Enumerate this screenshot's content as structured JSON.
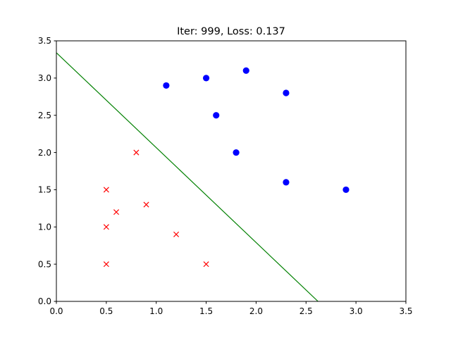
{
  "chart_data": {
    "type": "scatter",
    "title": "Iter: 999, Loss: 0.137",
    "xlabel": "",
    "ylabel": "",
    "xlim": [
      0.0,
      3.5
    ],
    "ylim": [
      0.0,
      3.5
    ],
    "xticks": [
      "0.0",
      "0.5",
      "1.0",
      "1.5",
      "2.0",
      "2.5",
      "3.0",
      "3.5"
    ],
    "yticks": [
      "0.0",
      "0.5",
      "1.0",
      "1.5",
      "2.0",
      "2.5",
      "3.0",
      "3.5"
    ],
    "grid": false,
    "legend": "none",
    "series": [
      {
        "marker": "circle",
        "color": "#0000ff",
        "points": [
          [
            1.1,
            2.9
          ],
          [
            1.5,
            3.0
          ],
          [
            1.9,
            3.1
          ],
          [
            2.3,
            2.8
          ],
          [
            1.6,
            2.5
          ],
          [
            1.8,
            2.0
          ],
          [
            2.3,
            1.6
          ],
          [
            2.9,
            1.5
          ]
        ]
      },
      {
        "marker": "x",
        "color": "#ff0000",
        "points": [
          [
            0.8,
            2.0
          ],
          [
            0.5,
            1.5
          ],
          [
            0.6,
            1.2
          ],
          [
            0.9,
            1.3
          ],
          [
            0.5,
            1.0
          ],
          [
            1.2,
            0.9
          ],
          [
            0.5,
            0.5
          ],
          [
            1.5,
            0.5
          ]
        ]
      }
    ],
    "decision_line": {
      "color": "#008000",
      "points": [
        [
          0.0,
          3.34
        ],
        [
          2.62,
          0.0
        ]
      ]
    }
  }
}
